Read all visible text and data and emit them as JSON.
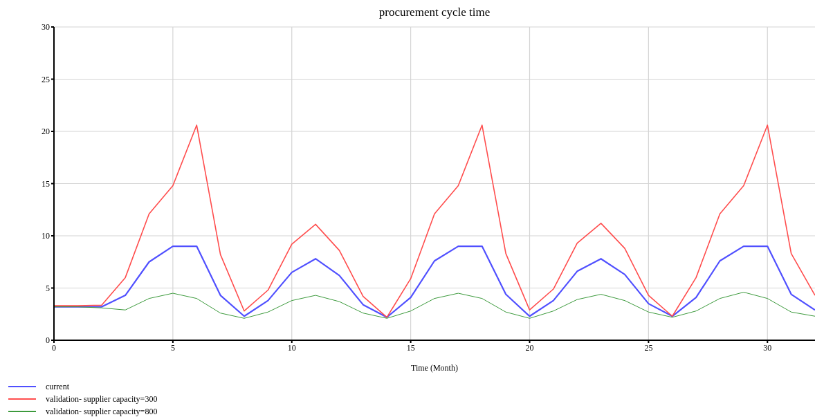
{
  "chart_data": {
    "type": "line",
    "title": "procurement cycle time",
    "xlabel": "Time (Month)",
    "x": [
      0,
      1,
      2,
      3,
      4,
      5,
      6,
      7,
      8,
      9,
      10,
      11,
      12,
      13,
      14,
      15,
      16,
      17,
      18,
      19,
      20,
      21,
      22,
      23,
      24,
      25,
      26,
      27,
      28,
      29,
      30,
      31,
      32
    ],
    "series": [
      {
        "name": "current",
        "color": "#5050ff",
        "values": [
          3.2,
          3.2,
          3.2,
          4.3,
          7.5,
          9,
          9,
          4.3,
          2.3,
          3.8,
          6.5,
          7.8,
          6.2,
          3.4,
          2.2,
          4.1,
          7.6,
          9,
          9,
          4.4,
          2.3,
          3.8,
          6.6,
          7.8,
          6.3,
          3.5,
          2.3,
          4.1,
          7.6,
          9,
          9,
          4.4,
          2.9
        ]
      },
      {
        "name": "validation- supplier capacity=300",
        "color": "#ff4d4d",
        "values": [
          3.3,
          3.3,
          3.35,
          6,
          12.1,
          14.8,
          20.6,
          8.2,
          2.8,
          4.8,
          9.2,
          11.1,
          8.6,
          4.2,
          2.2,
          5.9,
          12.1,
          14.8,
          20.6,
          8.3,
          2.9,
          4.9,
          9.3,
          11.2,
          8.8,
          4.3,
          2.3,
          6,
          12.1,
          14.8,
          20.6,
          8.3,
          4.3
        ]
      },
      {
        "name": "validation- supplier capacity=800",
        "color": "#3c9a3c",
        "values": [
          3.2,
          3.2,
          3.1,
          2.9,
          4,
          4.5,
          4,
          2.6,
          2.1,
          2.7,
          3.8,
          4.3,
          3.7,
          2.6,
          2.1,
          2.8,
          4,
          4.5,
          4,
          2.7,
          2.1,
          2.8,
          3.9,
          4.4,
          3.8,
          2.7,
          2.2,
          2.8,
          4,
          4.6,
          4,
          2.7,
          2.3
        ]
      }
    ],
    "xlim": [
      0,
      32
    ],
    "xticks": [
      0,
      5,
      10,
      15,
      20,
      25,
      30
    ],
    "ylim": [
      0,
      30
    ],
    "yticks": [
      0,
      5,
      10,
      15,
      20,
      25,
      30
    ],
    "grid": true,
    "legend": "bottom left",
    "marker": "none",
    "line_style": "solid"
  }
}
